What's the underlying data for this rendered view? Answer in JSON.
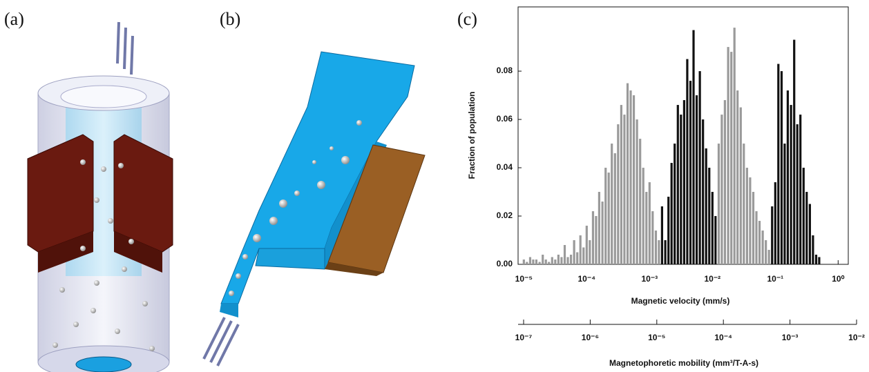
{
  "panel_labels": [
    "(a)",
    "(b)",
    "(c)"
  ],
  "chart_data": {
    "type": "bar",
    "xlabel": "Magnetic velocity (mm/s)",
    "ylabel": "Fraction of population",
    "x2label": "Magnetophoretic mobility (mm³/T-A-s)",
    "xscale": "log",
    "x2scale": "log",
    "xlim": [
      8.1e-06,
      1.45
    ],
    "ylim": [
      0,
      0.1066
    ],
    "xticks": [
      {
        "value": 1e-05,
        "label": "10⁻⁵"
      },
      {
        "value": 0.0001,
        "label": "10⁻⁴"
      },
      {
        "value": 0.001,
        "label": "10⁻³"
      },
      {
        "value": 0.01,
        "label": "10⁻²"
      },
      {
        "value": 0.1,
        "label": "10⁻¹"
      },
      {
        "value": 1,
        "label": "10⁰"
      }
    ],
    "yticks": [
      {
        "value": 0,
        "label": "0.00"
      },
      0.02,
      0.04,
      0.06,
      0.08
    ],
    "x2lim": [
      1e-07,
      0.01
    ],
    "x2ticks": [
      {
        "value": 1e-07,
        "label": "10⁻⁷"
      },
      {
        "value": 1e-06,
        "label": "10⁻⁶"
      },
      {
        "value": 1e-05,
        "label": "10⁻⁵"
      },
      {
        "value": 0.0001,
        "label": "10⁻⁴"
      },
      {
        "value": 0.001,
        "label": "10⁻³"
      },
      {
        "value": 0.01,
        "label": "10⁻²"
      }
    ],
    "series": [
      {
        "color": "#9a9a9a",
        "x": [
          1e-05,
          1.12e-05,
          1.26e-05,
          1.41e-05,
          1.58e-05,
          1.78e-05,
          2e-05,
          2.24e-05,
          2.51e-05,
          2.82e-05,
          3.16e-05,
          3.55e-05,
          3.98e-05,
          4.47e-05,
          5.01e-05,
          5.62e-05,
          6.31e-05,
          7.08e-05,
          7.94e-05,
          8.91e-05,
          0.0001,
          0.000112,
          0.000126,
          0.000141,
          0.000158,
          0.000178,
          0.0002,
          0.000224,
          0.000251,
          0.000282,
          0.000316,
          0.000355,
          0.000398,
          0.000447,
          0.000501,
          0.000562,
          0.000631,
          0.000708,
          0.000794,
          0.000891,
          0.001,
          0.00112,
          0.00126,
          0.00141
        ],
        "values": [
          0.002,
          0.001,
          0.003,
          0.002,
          0.002,
          0.001,
          0.004,
          0.002,
          0.001,
          0.003,
          0.002,
          0.004,
          0.003,
          0.008,
          0.003,
          0.004,
          0.01,
          0.005,
          0.012,
          0.007,
          0.016,
          0.01,
          0.022,
          0.02,
          0.03,
          0.026,
          0.04,
          0.038,
          0.05,
          0.046,
          0.058,
          0.066,
          0.062,
          0.075,
          0.072,
          0.07,
          0.06,
          0.052,
          0.04,
          0.03,
          0.034,
          0.022,
          0.014,
          0.01
        ]
      },
      {
        "color": "#111111",
        "x": [
          0.00158,
          0.00178,
          0.002,
          0.00224,
          0.00251,
          0.00282,
          0.00316,
          0.00355,
          0.00398,
          0.00447,
          0.00501,
          0.00562,
          0.00631,
          0.00708,
          0.00794,
          0.00891,
          0.01,
          0.0112
        ],
        "values": [
          0.024,
          0.01,
          0.028,
          0.042,
          0.05,
          0.066,
          0.062,
          0.068,
          0.085,
          0.076,
          0.097,
          0.07,
          0.08,
          0.06,
          0.048,
          0.04,
          0.03,
          0.02
        ]
      },
      {
        "color": "#9a9a9a",
        "x": [
          0.0126,
          0.0141,
          0.0158,
          0.0178,
          0.02,
          0.0224,
          0.0251,
          0.0282,
          0.0316,
          0.0355,
          0.0398,
          0.0447,
          0.0501,
          0.0562,
          0.0631,
          0.0708,
          0.0794
        ],
        "values": [
          0.05,
          0.062,
          0.068,
          0.09,
          0.088,
          0.098,
          0.072,
          0.065,
          0.05,
          0.04,
          0.036,
          0.03,
          0.022,
          0.018,
          0.014,
          0.01,
          0.006
        ]
      },
      {
        "color": "#111111",
        "x": [
          0.0891,
          0.1,
          0.112,
          0.126,
          0.141,
          0.158,
          0.178,
          0.2,
          0.224,
          0.251,
          0.282,
          0.316,
          0.355,
          0.398,
          0.447,
          0.5
        ],
        "values": [
          0.024,
          0.034,
          0.083,
          0.08,
          0.05,
          0.072,
          0.066,
          0.093,
          0.058,
          0.062,
          0.04,
          0.03,
          0.025,
          0.012,
          0.004,
          0.003
        ]
      }
    ]
  }
}
